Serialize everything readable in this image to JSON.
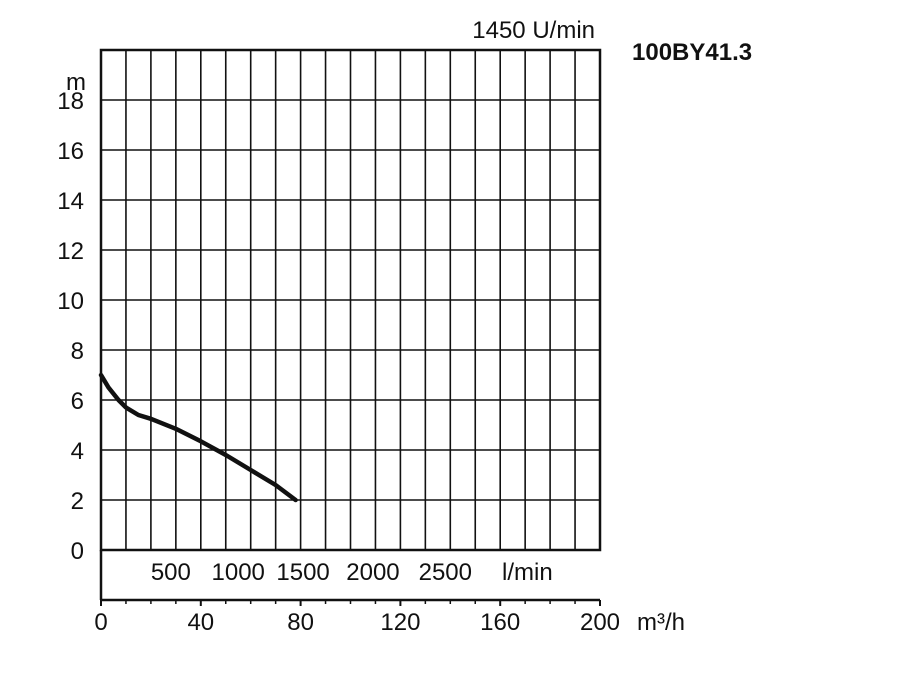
{
  "chart_data": {
    "type": "line",
    "speed_label": "1450 U/min",
    "model": "100BY41.3",
    "ylabel": "m",
    "xlabel": "m³/h",
    "flow_unit_label": "l/min",
    "xlim": [
      0,
      200
    ],
    "ylim": [
      0,
      20
    ],
    "grid": true,
    "x_ticks": [
      0,
      40,
      80,
      120,
      160,
      200
    ],
    "x_tick_labels": [
      "0",
      "40",
      "80",
      "120",
      "160",
      "200"
    ],
    "y_ticks": [
      0,
      2,
      4,
      6,
      8,
      10,
      12,
      14,
      16,
      18
    ],
    "y_tick_labels": [
      "0",
      "2",
      "4",
      "6",
      "8",
      "10",
      "12",
      "14",
      "16",
      "18"
    ],
    "lmin_ticks": [
      {
        "label": "500",
        "x": 28
      },
      {
        "label": "1000",
        "x": 55
      },
      {
        "label": "1500",
        "x": 81
      },
      {
        "label": "2000",
        "x": 109
      },
      {
        "label": "2500",
        "x": 138
      }
    ],
    "series": [
      {
        "x": [
          0,
          3,
          7,
          10,
          15,
          20,
          30,
          40,
          50,
          60,
          70,
          78
        ],
        "y": [
          7.0,
          6.5,
          6.0,
          5.7,
          5.4,
          5.25,
          4.85,
          4.35,
          3.8,
          3.2,
          2.6,
          2.0
        ]
      }
    ]
  }
}
